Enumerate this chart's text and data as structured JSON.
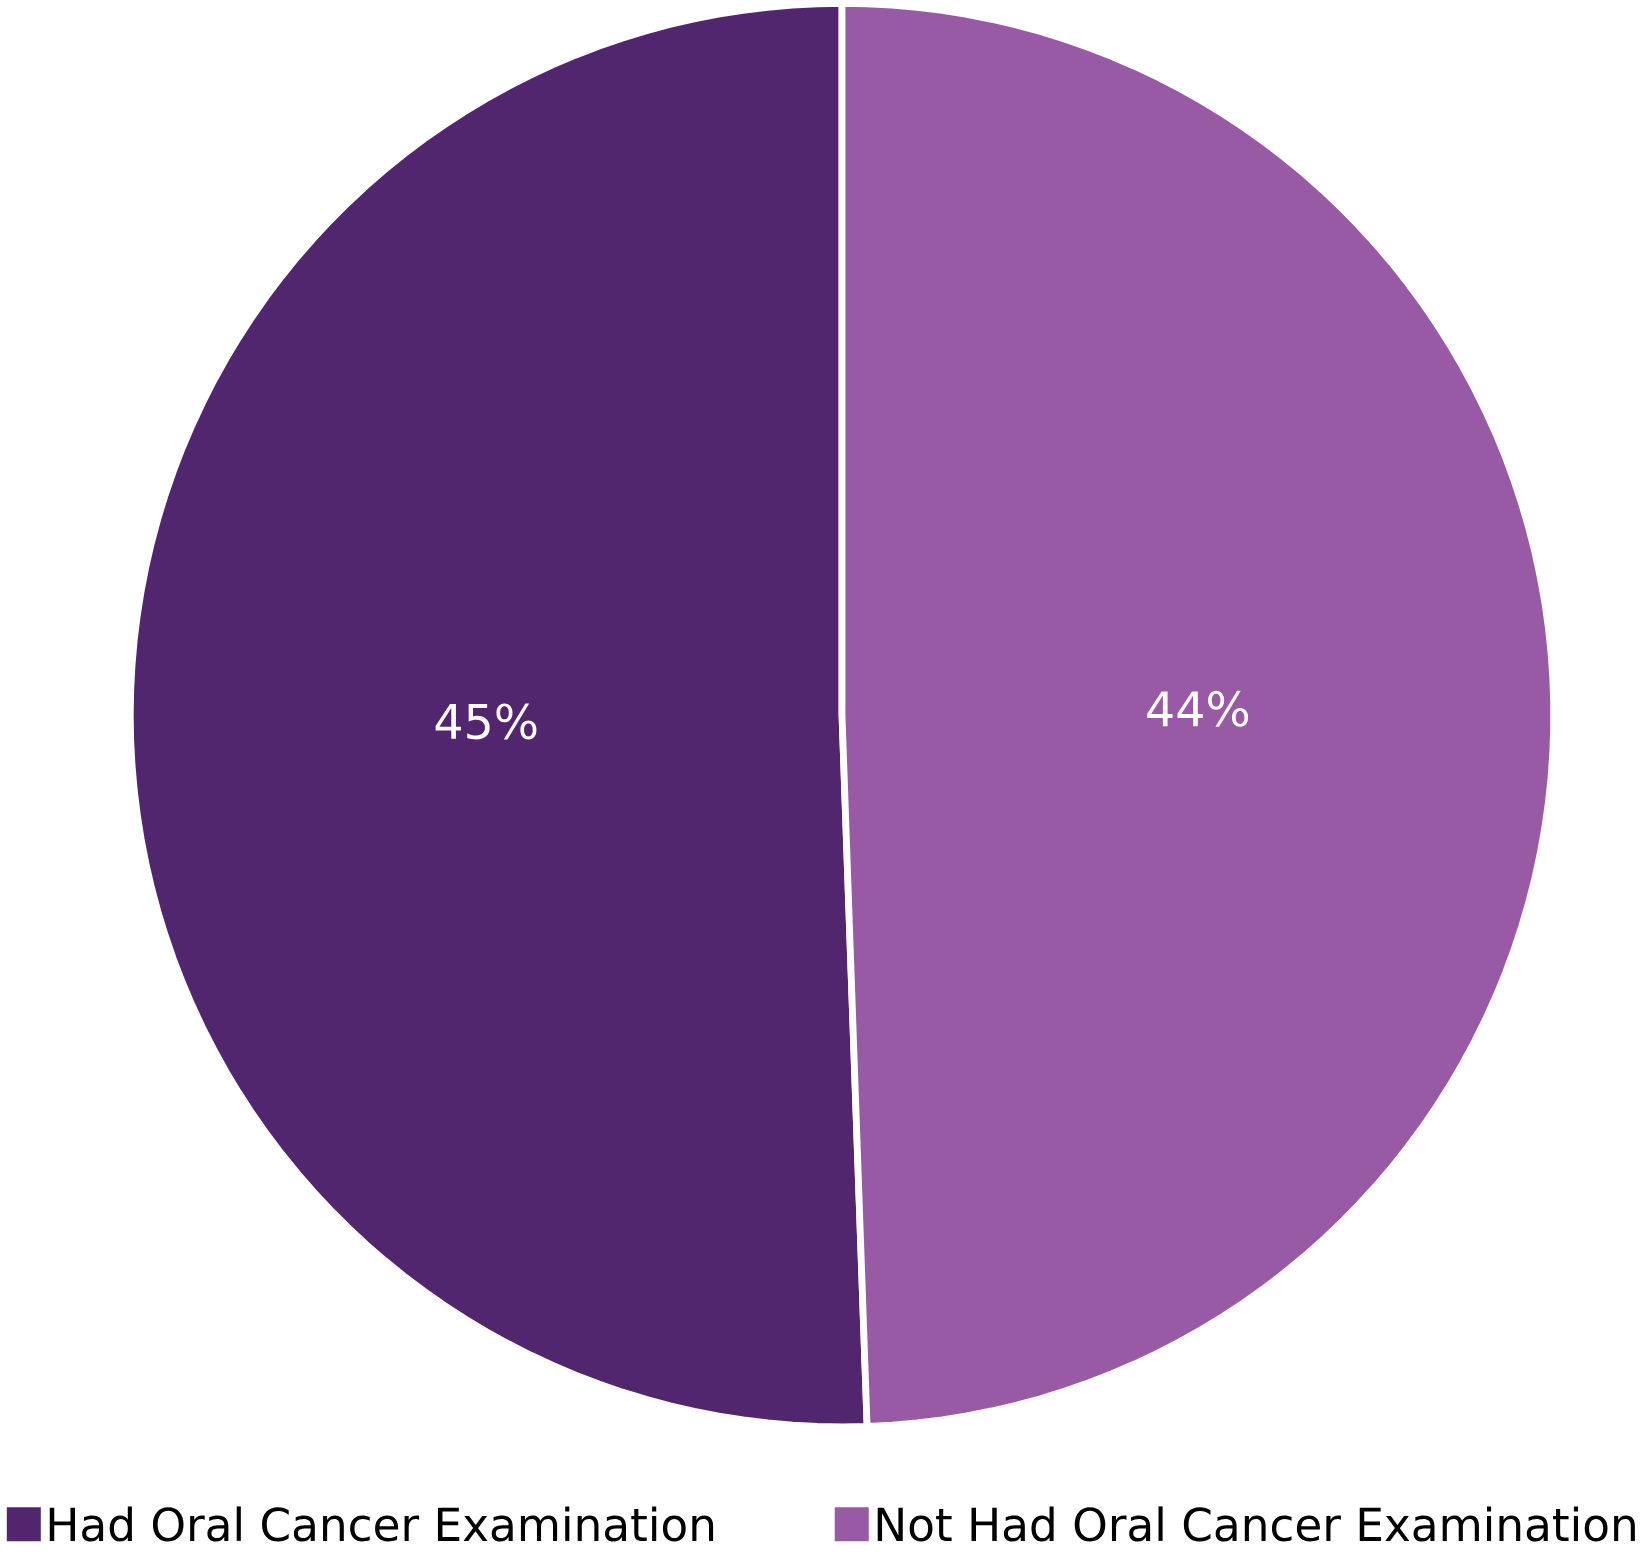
{
  "chart_data": {
    "type": "pie",
    "categories": [
      "Had Oral Cancer Examination",
      "Not Had Oral Cancer Examination"
    ],
    "values": [
      45,
      44
    ],
    "value_labels": [
      "45%",
      "44%"
    ],
    "colors": [
      "#52266e",
      "#985aa5"
    ],
    "legend": "bottom"
  }
}
